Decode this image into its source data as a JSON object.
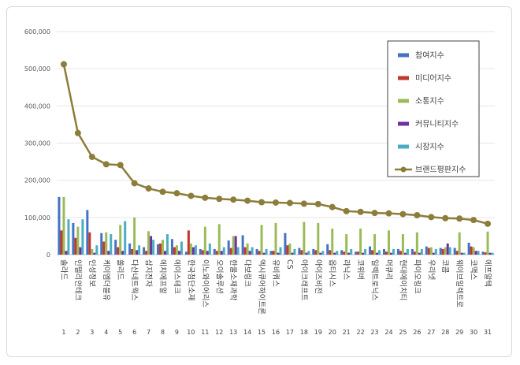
{
  "chart_data": {
    "type": "bar",
    "title": "",
    "xlabel": "",
    "ylabel": "",
    "ylim": [
      0,
      600000
    ],
    "yticks": [
      "0",
      "100,000",
      "200,000",
      "300,000",
      "400,000",
      "500,000",
      "600,000"
    ],
    "grid": true,
    "legend_position": "top-right",
    "categories": [
      "솔라드",
      "인텔리안테크",
      "인성정보",
      "케이엠더블유",
      "쏠리드",
      "다산네트웍스",
      "삼지전자",
      "에치에프알",
      "에이스테크",
      "한국첨단소재",
      "이노와이어리스",
      "오이솔루션",
      "한울소재과학",
      "다보링크",
      "엑시큐어하이트론",
      "유비쿼스",
      "CS",
      "아이크래프트",
      "아이즈비전",
      "옵티시스",
      "라닉스",
      "코위버",
      "일렉트로닉스",
      "머큐리",
      "현대에이치티",
      "파이오링크",
      "우리넷",
      "코콤",
      "웨이브일렉트로",
      "코맥스",
      "에프알텍"
    ],
    "ranks": [
      "1",
      "2",
      "3",
      "4",
      "5",
      "6",
      "7",
      "8",
      "9",
      "10",
      "11",
      "12",
      "13",
      "14",
      "15",
      "16",
      "17",
      "18",
      "19",
      "20",
      "21",
      "22",
      "23",
      "24",
      "25",
      "26",
      "27",
      "28",
      "29",
      "30",
      "31"
    ],
    "series": [
      {
        "name": "참여지수",
        "kind": "bar",
        "color": "#4472c4",
        "values": [
          155000,
          85000,
          120000,
          58000,
          40000,
          30000,
          20000,
          28000,
          42000,
          8000,
          15000,
          15000,
          38000,
          52000,
          15000,
          10000,
          58000,
          18000,
          15000,
          28000,
          12000,
          8000,
          22000,
          15000,
          15000,
          15000,
          22000,
          18000,
          18000,
          32000,
          8000
        ]
      },
      {
        "name": "미디어지수",
        "kind": "bar",
        "color": "#c0392b",
        "values": [
          65000,
          45000,
          60000,
          35000,
          20000,
          15000,
          10000,
          30000,
          20000,
          65000,
          12000,
          10000,
          18000,
          20000,
          10000,
          10000,
          25000,
          12000,
          12000,
          12000,
          8000,
          8000,
          12000,
          8000,
          10000,
          8000,
          18000,
          15000,
          10000,
          22000,
          6000
        ]
      },
      {
        "name": "소통지수",
        "kind": "bar",
        "color": "#9bbb59",
        "values": [
          155000,
          75000,
          15000,
          60000,
          80000,
          100000,
          63000,
          40000,
          25000,
          30000,
          75000,
          82000,
          50000,
          30000,
          80000,
          85000,
          30000,
          88000,
          85000,
          70000,
          55000,
          70000,
          55000,
          65000,
          55000,
          60000,
          20000,
          20000,
          60000,
          20000,
          62000
        ]
      },
      {
        "name": "커뮤니티지수",
        "kind": "bar",
        "color": "#7030a0",
        "values": [
          10000,
          20000,
          5000,
          10000,
          10000,
          12000,
          50000,
          10000,
          10000,
          20000,
          10000,
          10000,
          50000,
          10000,
          5000,
          5000,
          5000,
          5000,
          5000,
          5000,
          5000,
          5000,
          5000,
          5000,
          5000,
          5000,
          5000,
          30000,
          5000,
          10000,
          5000
        ]
      },
      {
        "name": "시장지수",
        "kind": "bar",
        "color": "#4bacc6",
        "values": [
          95000,
          95000,
          25000,
          55000,
          90000,
          25000,
          40000,
          55000,
          35000,
          25000,
          30000,
          20000,
          20000,
          20000,
          15000,
          20000,
          15000,
          10000,
          10000,
          10000,
          15000,
          15000,
          12000,
          15000,
          15000,
          15000,
          15000,
          20000,
          5000,
          10000,
          5000
        ]
      },
      {
        "name": "브랜드평판지수",
        "kind": "line",
        "color": "#8c7d3a",
        "values": [
          512000,
          327000,
          263000,
          243000,
          241000,
          192000,
          178000,
          169000,
          165000,
          158000,
          153000,
          150000,
          148000,
          145000,
          141000,
          140000,
          139000,
          137000,
          136000,
          128000,
          117000,
          115000,
          112000,
          111000,
          109000,
          106000,
          101000,
          98000,
          97000,
          93000,
          83000
        ]
      }
    ]
  }
}
